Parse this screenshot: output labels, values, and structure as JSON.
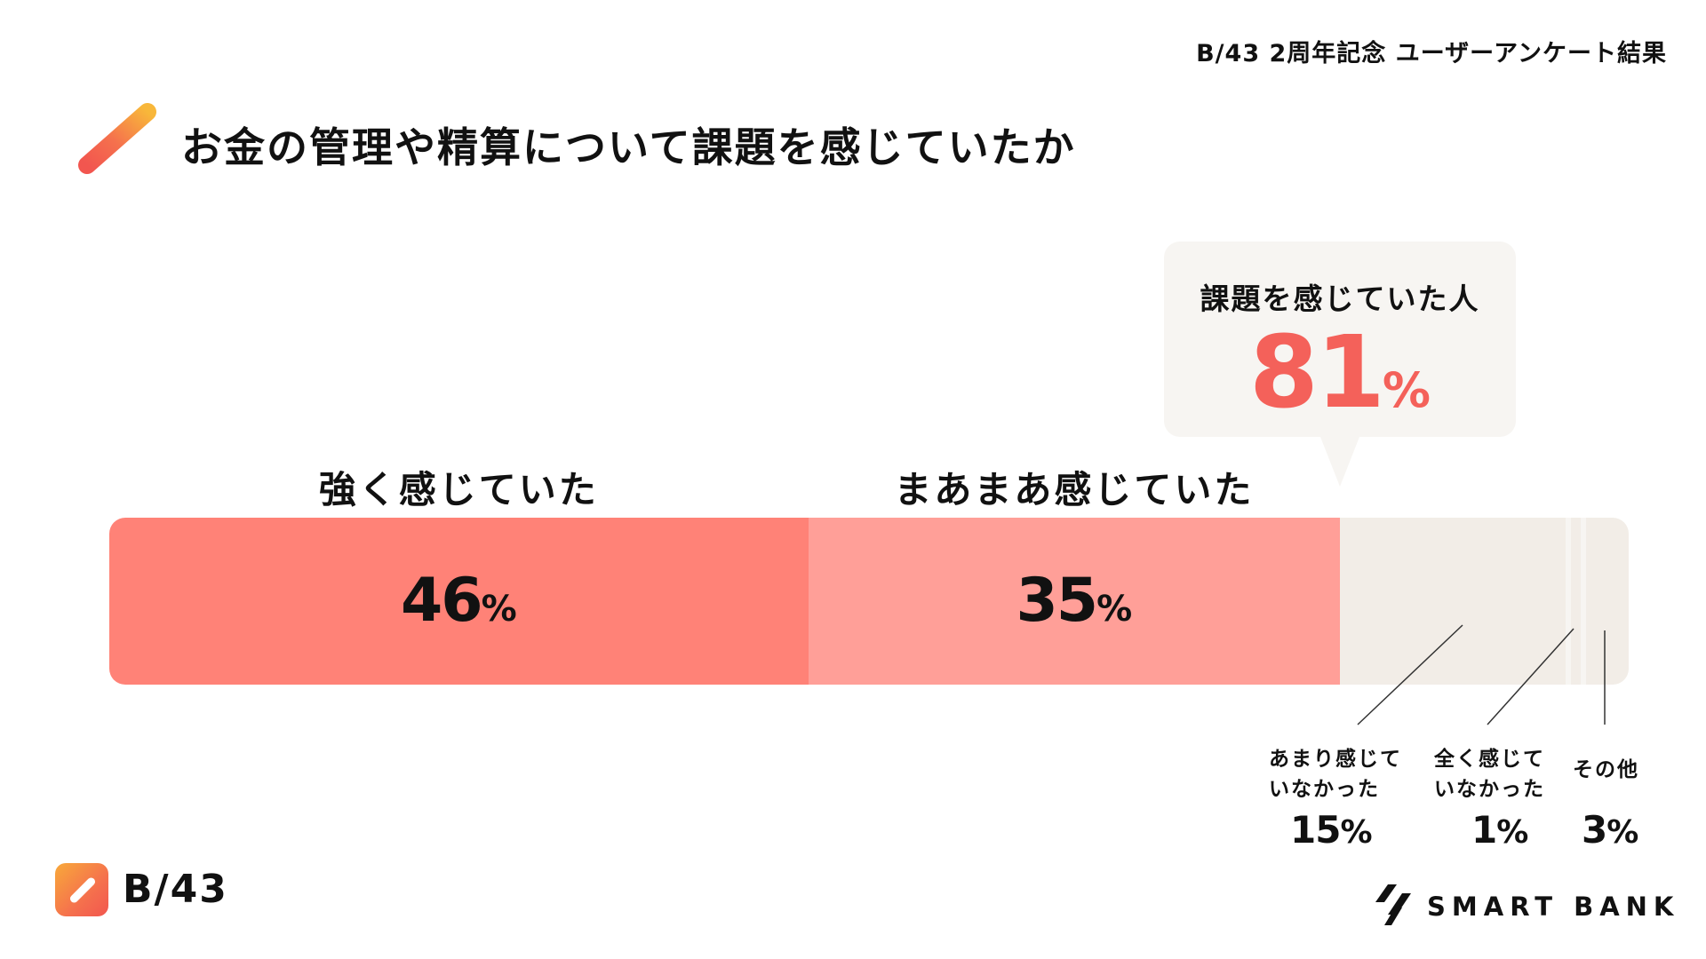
{
  "header": {
    "note": "B/43 2周年記念 ユーザーアンケート結果"
  },
  "page": {
    "title": "お金の管理や精算について課題を感じていたか"
  },
  "callout": {
    "label": "課題を感じていた人",
    "value": "81",
    "unit": "%"
  },
  "colors": {
    "strong": "#ff8277",
    "somewhat": "#ff9f98",
    "none_segments": "#f2ede7",
    "callout_value": "#f4615a",
    "callout_bg": "#f7f5f2",
    "brand_gradient": [
      "#f8a93a",
      "#f2564f"
    ]
  },
  "chart_data": {
    "type": "bar",
    "orientation": "horizontal-stacked",
    "title": "お金の管理や精算について課題を感じていたか",
    "unit": "%",
    "categories": [
      "強く感じていた",
      "まあまあ感じていた",
      "あまり感じていなかった",
      "全く感じていなかった",
      "その他"
    ],
    "values": [
      46,
      35,
      15,
      1,
      3
    ],
    "labels": {
      "strong": "強く感じていた",
      "somewhat": "まあまあ感じていた",
      "not_much": "あまり感じて\nいなかった",
      "not_at_all": "全く感じて\nいなかった",
      "other": "その他"
    },
    "display_values": {
      "strong": "46",
      "somewhat": "35",
      "not_much": "15",
      "not_at_all": "1",
      "other": "3"
    },
    "xlim": [
      0,
      100
    ]
  },
  "brand": {
    "logo_text": "B/43",
    "company": "SMART BANK"
  }
}
